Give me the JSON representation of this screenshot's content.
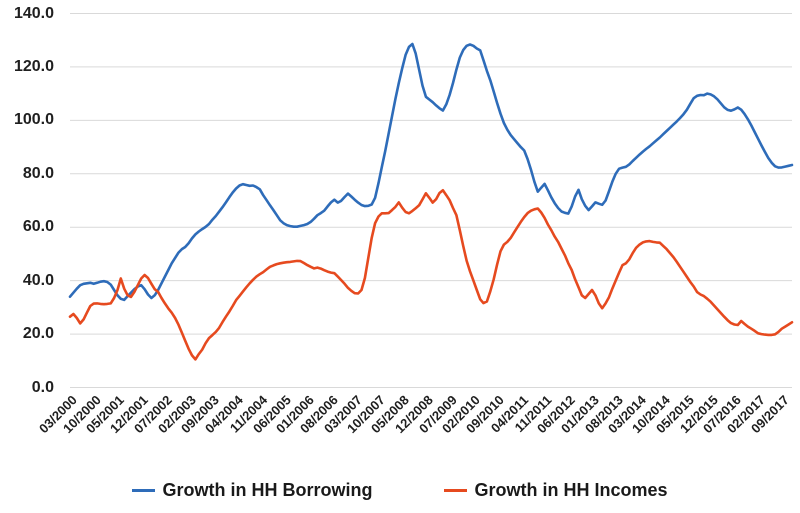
{
  "chart_data": {
    "type": "line",
    "title": "",
    "xlabel": "",
    "ylabel": "",
    "ylim": [
      0,
      140
    ],
    "grid": "horizontal",
    "gridline_color": "#D9D9D9",
    "axis_text_color": "#1F1F1F",
    "legend_position": "bottom",
    "frequency": "monthly",
    "x_start": "03/2000",
    "x_end": "12/2017",
    "label_every_n_months": 7,
    "y_ticks": [
      "0.0",
      "20.0",
      "40.0",
      "60.0",
      "80.0",
      "100.0",
      "120.0",
      "140.0"
    ],
    "x_tick_labels": [
      "03/2000",
      "10/2000",
      "05/2001",
      "12/2001",
      "07/2002",
      "02/2003",
      "09/2003",
      "04/2004",
      "11/2004",
      "06/2005",
      "01/2006",
      "08/2006",
      "03/2007",
      "10/2007",
      "05/2008",
      "12/2008",
      "07/2009",
      "02/2010",
      "09/2010",
      "04/2011",
      "11/2011",
      "06/2012",
      "01/2013",
      "08/2013",
      "03/2014",
      "10/2014",
      "05/2015",
      "12/2015",
      "07/2016",
      "02/2017",
      "09/2017"
    ],
    "series": [
      {
        "name": "Growth in HH Borrowing",
        "color": "#2E6CB9",
        "values": [
          34,
          35.5,
          37,
          38.3,
          38.8,
          39,
          39.2,
          38.8,
          39.2,
          39.6,
          39.8,
          39.5,
          38.5,
          36.5,
          34.5,
          33.2,
          32.8,
          34.2,
          35.5,
          36.8,
          37.8,
          38.3,
          36.8,
          34.8,
          33.5,
          34.5,
          36.5,
          39,
          41.5,
          44,
          46.5,
          48.5,
          50.5,
          51.8,
          52.6,
          54,
          55.8,
          57.3,
          58.4,
          59.3,
          60.1,
          61.2,
          62.8,
          64.2,
          65.8,
          67.5,
          69.3,
          71.2,
          73,
          74.5,
          75.6,
          76.1,
          75.8,
          75.5,
          75.6,
          75,
          74.2,
          72,
          70.1,
          68.2,
          66.4,
          64.5,
          62.6,
          61.5,
          60.8,
          60.4,
          60.2,
          60.2,
          60.5,
          60.8,
          61.2,
          62,
          63.2,
          64.5,
          65.3,
          66.2,
          67.8,
          69.3,
          70.3,
          69.2,
          69.9,
          71.3,
          72.6,
          71.5,
          70.3,
          69.2,
          68.3,
          67.9,
          68,
          68.5,
          71,
          76.5,
          82.5,
          88.5,
          95,
          101.5,
          108,
          114,
          119.5,
          124.5,
          127.5,
          128.6,
          125,
          119,
          113,
          108.8,
          107.8,
          106.8,
          105.6,
          104.5,
          103.7,
          106,
          109.5,
          114,
          119,
          123.5,
          126.3,
          127.9,
          128.4,
          127.9,
          126.9,
          126.2,
          122.5,
          118.5,
          115,
          110.8,
          106.5,
          102.5,
          99,
          96.5,
          94.5,
          93,
          91.5,
          90,
          88.7,
          85.5,
          81.5,
          77,
          73.3,
          74.8,
          76.2,
          73.8,
          71.2,
          69,
          67.2,
          65.9,
          65.4,
          65.1,
          67.8,
          71.5,
          74,
          70.5,
          68,
          66.4,
          67.8,
          69.3,
          68.8,
          68.4,
          70,
          73.5,
          77,
          80,
          81.9,
          82.3,
          82.6,
          83.5,
          84.8,
          86,
          87.2,
          88.3,
          89.3,
          90.3,
          91.4,
          92.5,
          93.6,
          94.8,
          96,
          97.2,
          98.4,
          99.6,
          100.9,
          102.3,
          104,
          106.2,
          108.3,
          109.2,
          109.5,
          109.4,
          110,
          109.7,
          109,
          107.9,
          106.4,
          104.9,
          103.9,
          103.6,
          104.1,
          104.8,
          104,
          102.4,
          100.4,
          98.1,
          95.6,
          93.1,
          90.6,
          88.2,
          85.9,
          84.1,
          82.8,
          82.3,
          82.4,
          82.7,
          83,
          83.3
        ]
      },
      {
        "name": "Growth in HH Incomes",
        "color": "#E64A1F",
        "values": [
          26.5,
          27.5,
          26,
          24,
          25.5,
          28,
          30.5,
          31.4,
          31.5,
          31.3,
          31.2,
          31.3,
          31.5,
          33.5,
          36.5,
          40.8,
          37,
          34.5,
          33.9,
          35.8,
          38.3,
          40.8,
          42.1,
          41,
          38.8,
          36.8,
          35.8,
          33.5,
          31.5,
          29.6,
          28,
          26,
          23.5,
          20.5,
          17.5,
          14.5,
          12,
          10.5,
          12.5,
          14.2,
          16.6,
          18.5,
          19.6,
          20.8,
          22.3,
          24.5,
          26.5,
          28.4,
          30.5,
          32.7,
          34.3,
          35.9,
          37.5,
          39,
          40.3,
          41.5,
          42.4,
          43.2,
          44.2,
          45.2,
          45.7,
          46.2,
          46.5,
          46.7,
          46.9,
          47,
          47.2,
          47.4,
          47.3,
          46.6,
          45.8,
          45.2,
          44.6,
          44.9,
          44.5,
          43.9,
          43.4,
          43,
          42.8,
          41.5,
          40.2,
          38.8,
          37.3,
          36.2,
          35.3,
          35.2,
          36.5,
          41,
          48.5,
          56,
          61.5,
          64,
          65.2,
          65.2,
          65.3,
          66.4,
          67.6,
          69.3,
          67.3,
          65.7,
          65.2,
          66.1,
          67.1,
          68.2,
          70.4,
          72.7,
          71,
          69.2,
          70.5,
          72.8,
          73.8,
          72,
          70.1,
          67.2,
          64.5,
          58.9,
          53,
          47.5,
          43.5,
          40,
          36.5,
          33,
          31.6,
          32.2,
          36,
          40.5,
          46,
          51,
          53.5,
          54.5,
          56,
          58,
          60,
          62,
          63.8,
          65.3,
          66.2,
          66.7,
          67,
          65.5,
          63.5,
          61,
          58.9,
          56.5,
          54.5,
          52,
          49.5,
          46.5,
          44,
          40.5,
          37.5,
          34.5,
          33.5,
          35,
          36.5,
          34.5,
          31.5,
          29.7,
          31.5,
          33.8,
          37,
          40,
          43,
          45.8,
          46.5,
          48,
          50.3,
          52.3,
          53.5,
          54.3,
          54.7,
          54.8,
          54.5,
          54.3,
          54.2,
          53,
          51.8,
          50.3,
          48.8,
          47,
          45.2,
          43.3,
          41.4,
          39.5,
          37.8,
          35.7,
          34.8,
          34.2,
          33.2,
          32.1,
          30.7,
          29.3,
          27.9,
          26.5,
          25.2,
          24.1,
          23.6,
          23.4,
          24.9,
          23.8,
          22.8,
          22,
          21.2,
          20.3,
          20,
          19.8,
          19.7,
          19.7,
          19.9,
          20.8,
          22,
          22.8,
          23.6,
          24.4
        ]
      }
    ]
  }
}
